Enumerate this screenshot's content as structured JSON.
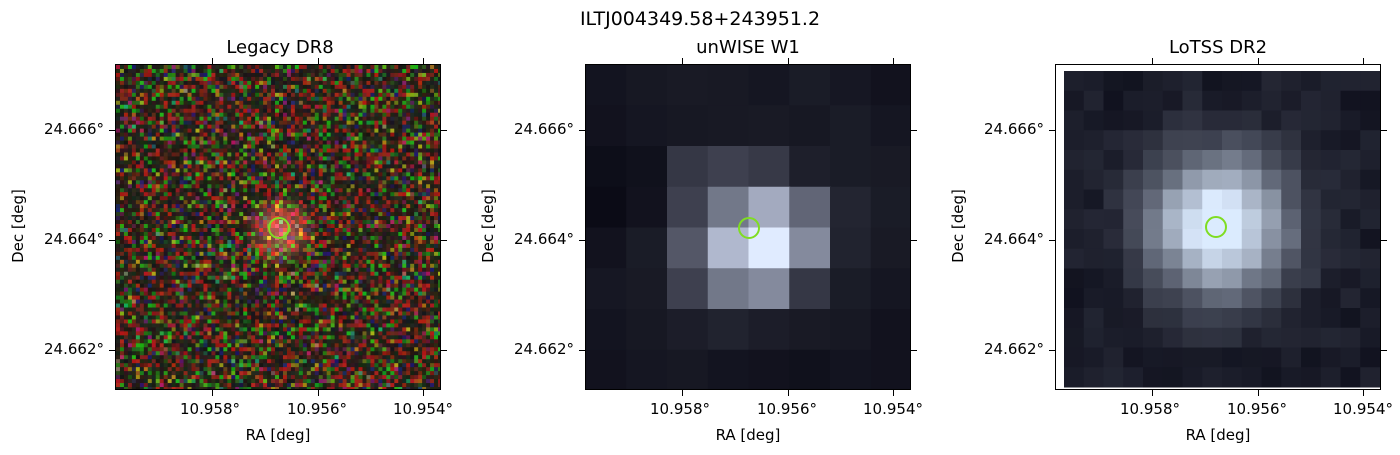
{
  "figure": {
    "title": "ILTJ004349.58+243951.2"
  },
  "panels": [
    {
      "title": "Legacy DR8",
      "xlabel": "RA [deg]",
      "ylabel": "Dec [deg]",
      "xticks": [
        "10.958°",
        "10.956°",
        "10.954°"
      ],
      "yticks": [
        "24.666°",
        "24.664°",
        "24.662°"
      ]
    },
    {
      "title": "unWISE W1",
      "xlabel": "RA [deg]",
      "ylabel": "Dec [deg]",
      "xticks": [
        "10.958°",
        "10.956°",
        "10.954°"
      ],
      "yticks": [
        "24.666°",
        "24.664°",
        "24.662°"
      ]
    },
    {
      "title": "LoTSS DR2",
      "xlabel": "RA [deg]",
      "ylabel": "Dec [deg]",
      "xticks": [
        "10.958°",
        "10.956°",
        "10.954°"
      ],
      "yticks": [
        "24.666°",
        "24.664°",
        "24.662°"
      ]
    }
  ],
  "marker": {
    "color": "#7fdd22"
  }
}
